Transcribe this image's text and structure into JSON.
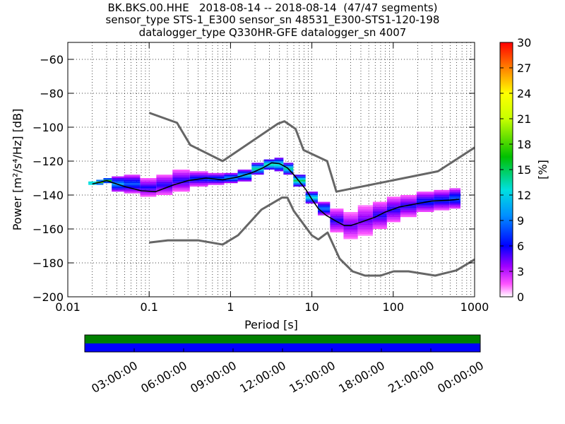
{
  "title": {
    "line1": "BK.BKS.00.HHE   2018-08-14 -- 2018-08-14  (47/47 segments)",
    "line2": "sensor_type STS-1_E300 sensor_sn 48531_E300-STS1-120-198",
    "line3": "datalogger_type Q330HR-GFE datalogger_sn 4007"
  },
  "chart_data": [
    {
      "type": "heatmap",
      "xlabel": "Period [s]",
      "ylabel": "Power [m²/s⁴/Hz] [dB]",
      "x_scale": "log",
      "xlim": [
        0.01,
        1000
      ],
      "ylim": [
        -200,
        -50
      ],
      "x_ticks": [
        0.01,
        0.1,
        1,
        10,
        100,
        1000
      ],
      "x_tick_labels": [
        "0.01",
        "0.1",
        "1",
        "10",
        "100",
        "1000"
      ],
      "y_ticks": [
        -200,
        -180,
        -160,
        -140,
        -120,
        -100,
        -80,
        -60
      ],
      "y_tick_labels": [
        "−200",
        "−180",
        "−160",
        "−140",
        "−120",
        "−100",
        "−80",
        "−60"
      ],
      "grid": true,
      "colorbar": {
        "label": "[%]",
        "range": [
          0,
          30
        ],
        "ticks": [
          "0",
          "3",
          "6",
          "9",
          "12",
          "15",
          "18",
          "21",
          "24",
          "27",
          "30"
        ]
      },
      "noise_model_upper": {
        "x": [
          0.1,
          0.22,
          0.32,
          0.8,
          3.8,
          4.6,
          6.3,
          7.9,
          15.4,
          20,
          354.8,
          1000
        ],
        "y": [
          -91.5,
          -97.4,
          -110.5,
          -120,
          -98,
          -96.5,
          -101,
          -113.5,
          -120,
          -138,
          -126,
          -112
        ]
      },
      "noise_model_lower": {
        "x": [
          0.1,
          0.17,
          0.4,
          0.8,
          1.24,
          2.4,
          4.3,
          5,
          6,
          10,
          12,
          15.6,
          21.9,
          31.6,
          45,
          70,
          101,
          154,
          328,
          600,
          1000
        ],
        "y": [
          -168,
          -166.7,
          -166.7,
          -169.2,
          -163.7,
          -148.6,
          -141.5,
          -141.5,
          -149.4,
          -163.8,
          -166.2,
          -162.1,
          -177.5,
          -185,
          -187.5,
          -187.5,
          -185,
          -185,
          -187.5,
          -184.4,
          -178
        ]
      },
      "mode_line": {
        "x": [
          0.02,
          0.03,
          0.05,
          0.08,
          0.12,
          0.2,
          0.3,
          0.5,
          0.8,
          1.2,
          1.8,
          2.5,
          3.2,
          4,
          5,
          6,
          7,
          8.5,
          10,
          12,
          15,
          20,
          25,
          30,
          40,
          60,
          80,
          120,
          200,
          300,
          500,
          650
        ],
        "y": [
          -133.5,
          -131.5,
          -135,
          -137.5,
          -138,
          -134,
          -131.5,
          -130,
          -131,
          -129.5,
          -127,
          -124,
          -121,
          -121.5,
          -124,
          -128,
          -132,
          -137,
          -142.5,
          -148,
          -152,
          -155.5,
          -158,
          -158,
          -156,
          -153,
          -150,
          -147,
          -145,
          -143.5,
          -143,
          -142.5
        ]
      },
      "psd_density": [
        {
          "x": 0.02,
          "lo": -134,
          "hi": -132,
          "pct": 18
        },
        {
          "x": 0.025,
          "lo": -134,
          "hi": -131,
          "pct": 16
        },
        {
          "x": 0.03,
          "lo": -133,
          "hi": -130,
          "pct": 14
        },
        {
          "x": 0.04,
          "lo": -138,
          "hi": -129,
          "pct": 9
        },
        {
          "x": 0.06,
          "lo": -139,
          "hi": -128,
          "pct": 7
        },
        {
          "x": 0.1,
          "lo": -141,
          "hi": -130,
          "pct": 5
        },
        {
          "x": 0.15,
          "lo": -140,
          "hi": -128,
          "pct": 5
        },
        {
          "x": 0.25,
          "lo": -138,
          "hi": -125,
          "pct": 5
        },
        {
          "x": 0.4,
          "lo": -135,
          "hi": -126,
          "pct": 6
        },
        {
          "x": 0.7,
          "lo": -134,
          "hi": -127,
          "pct": 7
        },
        {
          "x": 1,
          "lo": -133,
          "hi": -127,
          "pct": 9
        },
        {
          "x": 1.5,
          "lo": -132,
          "hi": -125,
          "pct": 10
        },
        {
          "x": 2.2,
          "lo": -128,
          "hi": -121,
          "pct": 12
        },
        {
          "x": 3,
          "lo": -125,
          "hi": -119,
          "pct": 13
        },
        {
          "x": 4,
          "lo": -126,
          "hi": -118,
          "pct": 12
        },
        {
          "x": 5,
          "lo": -128,
          "hi": -121,
          "pct": 12
        },
        {
          "x": 7,
          "lo": -135,
          "hi": -128,
          "pct": 13
        },
        {
          "x": 10,
          "lo": -145,
          "hi": -138,
          "pct": 11
        },
        {
          "x": 14,
          "lo": -152,
          "hi": -144,
          "pct": 8
        },
        {
          "x": 20,
          "lo": -162,
          "hi": -148,
          "pct": 5
        },
        {
          "x": 30,
          "lo": -166,
          "hi": -150,
          "pct": 4
        },
        {
          "x": 45,
          "lo": -164,
          "hi": -146,
          "pct": 4
        },
        {
          "x": 70,
          "lo": -160,
          "hi": -144,
          "pct": 5
        },
        {
          "x": 100,
          "lo": -156,
          "hi": -141,
          "pct": 5
        },
        {
          "x": 150,
          "lo": -153,
          "hi": -140,
          "pct": 5
        },
        {
          "x": 250,
          "lo": -150,
          "hi": -138,
          "pct": 6
        },
        {
          "x": 400,
          "lo": -149,
          "hi": -137,
          "pct": 6
        },
        {
          "x": 600,
          "lo": -148,
          "hi": -136,
          "pct": 7
        }
      ],
      "colors": {
        "noise_model": "#666666",
        "mode_line": "#000000"
      }
    },
    {
      "type": "timeline",
      "tick_labels": [
        "03:00:00",
        "06:00:00",
        "09:00:00",
        "12:00:00",
        "15:00:00",
        "18:00:00",
        "21:00:00",
        "00:00:00"
      ],
      "bars": [
        {
          "label": "",
          "color": "#008000",
          "from_hours": 0,
          "to_hours": 24
        },
        {
          "label": "",
          "color": "#0000ff",
          "from_hours": 0,
          "to_hours": 24
        }
      ]
    }
  ]
}
